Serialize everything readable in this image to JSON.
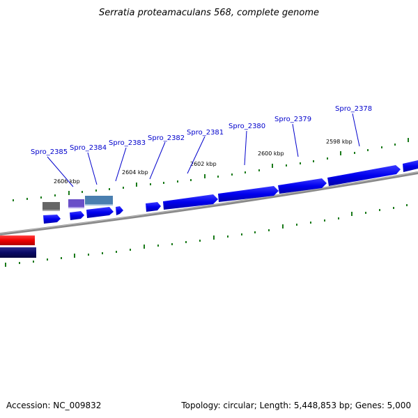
{
  "title": "Serratia proteamaculans 568, complete genome",
  "footer": {
    "accession": "Accession: NC_009832",
    "summary": "Topology: circular; Length: 5,448,853 bp; Genes: 5,000"
  },
  "colors": {
    "gene": "#0000ee",
    "backbone": "#888888",
    "tick": "#1a7a1a",
    "label": "#0000cc",
    "red_feature": "#ee0000",
    "navy_feature": "#0a0a66",
    "gray_feature": "#666666",
    "purple_feature": "#6a4fc8",
    "steel_feature": "#4a7fb0"
  },
  "kbp_labels": [
    "2606 kbp",
    "2604 kbp",
    "2602 kbp",
    "2600 kbp",
    "2598 kbp"
  ],
  "gene_labels": [
    "Spro_2385",
    "Spro_2384",
    "Spro_2383",
    "Spro_2382",
    "Spro_2381",
    "Spro_2380",
    "Spro_2379",
    "Spro_2378"
  ]
}
